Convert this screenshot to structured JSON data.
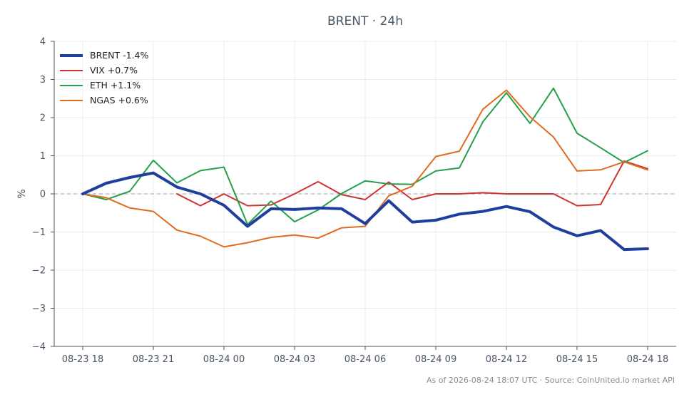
{
  "title": "BRENT · 24h",
  "footer": "As of 2026-08-24 18:07 UTC · Source: CoinUnited.io market API",
  "colors": {
    "grid": "#ececec",
    "axis": "#4a5566",
    "zero_line": "#9aa0b4"
  },
  "chart_data": {
    "type": "line",
    "title": "BRENT · 24h",
    "ylabel": "%",
    "xlabel": "",
    "ylim": [
      -4,
      4
    ],
    "yticks": [
      4,
      3,
      2,
      1,
      0,
      -1,
      -2,
      -3,
      -4
    ],
    "ytick_labels": [
      "4",
      "3",
      "2",
      "1",
      "0",
      "−1",
      "−2",
      "−3",
      "−4"
    ],
    "x": [
      "08-23 18",
      "08-23 19",
      "08-23 20",
      "08-23 21",
      "08-23 22",
      "08-23 23",
      "08-24 00",
      "08-24 01",
      "08-24 02",
      "08-24 03",
      "08-24 04",
      "08-24 05",
      "08-24 06",
      "08-24 07",
      "08-24 08",
      "08-24 09",
      "08-24 10",
      "08-24 11",
      "08-24 12",
      "08-24 13",
      "08-24 14",
      "08-24 15",
      "08-24 16",
      "08-24 17",
      "08-24 18"
    ],
    "xtick_labels": [
      "08-23 18",
      "08-23 21",
      "08-24 00",
      "08-24 03",
      "08-24 06",
      "08-24 09",
      "08-24 12",
      "08-24 15",
      "08-24 18"
    ],
    "grid": true,
    "legend_position": "top-left",
    "series": [
      {
        "name": "BRENT -1.4%",
        "color": "#1f3f9c",
        "width": 4,
        "values": [
          0.0,
          0.28,
          0.43,
          0.55,
          0.18,
          0.0,
          -0.3,
          -0.85,
          -0.39,
          -0.41,
          -0.37,
          -0.39,
          -0.78,
          -0.18,
          -0.74,
          -0.69,
          -0.53,
          -0.46,
          -0.33,
          -0.47,
          -0.87,
          -1.1,
          -0.96,
          -1.46,
          -1.44
        ]
      },
      {
        "name": "VIX +0.7%",
        "color": "#d03232",
        "width": 2,
        "values": [
          null,
          null,
          null,
          null,
          0.0,
          -0.31,
          0.0,
          -0.31,
          -0.29,
          0.0,
          0.32,
          -0.02,
          -0.15,
          0.31,
          -0.15,
          0.0,
          0.0,
          0.03,
          0.0,
          0.0,
          0.0,
          -0.31,
          -0.28,
          0.86,
          0.66
        ]
      },
      {
        "name": "ETH +1.1%",
        "color": "#23a14a",
        "width": 2,
        "values": [
          0.0,
          -0.15,
          0.07,
          0.88,
          0.29,
          0.61,
          0.7,
          -0.8,
          -0.19,
          -0.73,
          -0.42,
          0.01,
          0.34,
          0.26,
          0.25,
          0.6,
          0.68,
          1.89,
          2.65,
          1.85,
          2.77,
          1.59,
          1.21,
          0.82,
          1.13
        ]
      },
      {
        "name": "NGAS +0.6%",
        "color": "#e06c1f",
        "width": 2,
        "values": [
          0.0,
          -0.1,
          -0.37,
          -0.46,
          -0.95,
          -1.11,
          -1.39,
          -1.28,
          -1.14,
          -1.08,
          -1.16,
          -0.89,
          -0.85,
          -0.05,
          0.2,
          0.98,
          1.12,
          2.22,
          2.72,
          2.02,
          1.49,
          0.6,
          0.63,
          0.84,
          0.63
        ]
      }
    ]
  }
}
